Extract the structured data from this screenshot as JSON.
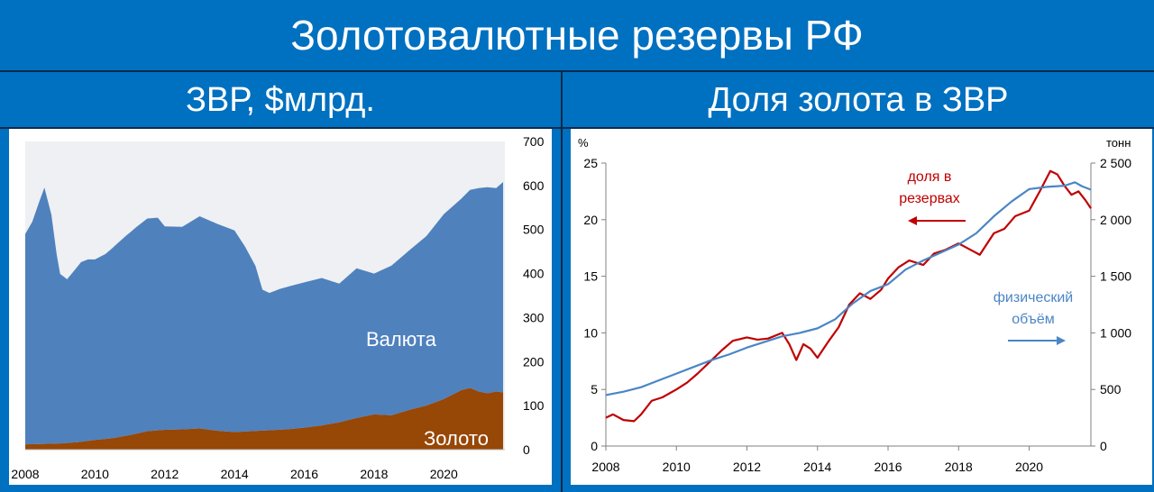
{
  "header": {
    "title": "Золотовалютные резервы РФ",
    "left_subtitle": "ЗВР, $млрд.",
    "right_subtitle": "Доля золота в ЗВР"
  },
  "colors": {
    "background": "#0070c0",
    "currency_area": "#4f81bd",
    "gold_area": "#974706",
    "share_line": "#c00000",
    "volume_line": "#4a86c5"
  },
  "chart_data": [
    {
      "type": "area",
      "stacked": true,
      "title": "ЗВР, $млрд.",
      "x_ticks": [
        "2008",
        "2010",
        "2012",
        "2014",
        "2016",
        "2018",
        "2020"
      ],
      "y_ticks": [
        "0",
        "100",
        "200",
        "300",
        "400",
        "500",
        "600",
        "700"
      ],
      "xlim": [
        2008,
        2021.75
      ],
      "ylim": [
        0,
        700
      ],
      "y_axis_side": "right",
      "grid": false,
      "series": [
        {
          "name": "Золото",
          "x": [
            2008.0,
            2008.5,
            2009.0,
            2009.5,
            2010.0,
            2010.5,
            2011.0,
            2011.5,
            2012.0,
            2012.5,
            2013.0,
            2013.5,
            2014.0,
            2014.5,
            2015.0,
            2015.5,
            2016.0,
            2016.5,
            2017.0,
            2017.5,
            2018.0,
            2018.5,
            2019.0,
            2019.5,
            2020.0,
            2020.5,
            2020.75,
            2021.0,
            2021.25,
            2021.5,
            2021.7
          ],
          "values": [
            12,
            13,
            14,
            17,
            22,
            26,
            33,
            42,
            45,
            46,
            48,
            43,
            40,
            42,
            44,
            46,
            50,
            55,
            62,
            72,
            80,
            78,
            90,
            100,
            115,
            135,
            140,
            132,
            128,
            132,
            130
          ]
        },
        {
          "name": "Валюта",
          "x": [
            2008.0,
            2008.2,
            2008.4,
            2008.55,
            2008.75,
            2008.9,
            2009.0,
            2009.2,
            2009.4,
            2009.6,
            2009.8,
            2010.0,
            2010.3,
            2010.6,
            2010.9,
            2011.2,
            2011.5,
            2011.8,
            2012.0,
            2012.5,
            2013.0,
            2013.5,
            2014.0,
            2014.3,
            2014.6,
            2014.8,
            2015.0,
            2015.3,
            2015.6,
            2016.0,
            2016.5,
            2017.0,
            2017.5,
            2018.0,
            2018.5,
            2019.0,
            2019.5,
            2020.0,
            2020.5,
            2020.75,
            2021.0,
            2021.25,
            2021.5,
            2021.7
          ],
          "values": [
            478,
            505,
            550,
            582,
            520,
            430,
            385,
            372,
            390,
            408,
            412,
            410,
            420,
            438,
            455,
            470,
            483,
            483,
            462,
            460,
            482,
            470,
            458,
            420,
            375,
            320,
            312,
            320,
            325,
            330,
            335,
            315,
            340,
            320,
            340,
            362,
            385,
            420,
            435,
            450,
            462,
            468,
            462,
            478
          ]
        }
      ],
      "labels": [
        "Валюта",
        "Золото"
      ]
    },
    {
      "type": "line",
      "title": "Доля золота в ЗВР",
      "x_ticks": [
        "2008",
        "2010",
        "2012",
        "2014",
        "2016",
        "2018",
        "2020"
      ],
      "xlim": [
        2008,
        2021.75
      ],
      "y_left": {
        "unit": "%",
        "ticks": [
          "0",
          "5",
          "10",
          "15",
          "20",
          "25"
        ],
        "range": [
          0,
          25
        ]
      },
      "y_right": {
        "unit": "тонн",
        "ticks": [
          "0",
          "500",
          "1 000",
          "1 500",
          "2 000",
          "2 500"
        ],
        "range": [
          0,
          2500
        ]
      },
      "grid": false,
      "series": [
        {
          "name": "доля в резервах",
          "axis": "left",
          "x": [
            2008.0,
            2008.2,
            2008.5,
            2008.8,
            2009.0,
            2009.3,
            2009.6,
            2010.0,
            2010.3,
            2010.6,
            2011.0,
            2011.3,
            2011.6,
            2012.0,
            2012.3,
            2012.6,
            2013.0,
            2013.2,
            2013.4,
            2013.6,
            2013.8,
            2014.0,
            2014.3,
            2014.6,
            2014.9,
            2015.2,
            2015.5,
            2015.8,
            2016.0,
            2016.3,
            2016.6,
            2017.0,
            2017.3,
            2017.6,
            2018.0,
            2018.3,
            2018.6,
            2019.0,
            2019.3,
            2019.6,
            2020.0,
            2020.3,
            2020.6,
            2020.8,
            2021.0,
            2021.2,
            2021.4,
            2021.6,
            2021.75
          ],
          "values": [
            2.5,
            2.8,
            2.3,
            2.2,
            2.8,
            4.0,
            4.3,
            5.0,
            5.6,
            6.4,
            7.6,
            8.5,
            9.3,
            9.6,
            9.4,
            9.5,
            10.0,
            9.0,
            7.6,
            9.0,
            8.6,
            7.8,
            9.2,
            10.5,
            12.5,
            13.5,
            13.0,
            13.8,
            14.8,
            15.8,
            16.4,
            16.0,
            17.0,
            17.3,
            17.9,
            17.4,
            16.9,
            18.8,
            19.2,
            20.3,
            20.8,
            22.5,
            24.3,
            24.0,
            23.0,
            22.2,
            22.5,
            21.7,
            21.0
          ]
        },
        {
          "name": "физический объём",
          "axis": "right",
          "x": [
            2008.0,
            2008.5,
            2009.0,
            2009.5,
            2010.0,
            2010.5,
            2011.0,
            2011.5,
            2012.0,
            2012.5,
            2013.0,
            2013.5,
            2014.0,
            2014.5,
            2015.0,
            2015.5,
            2016.0,
            2016.5,
            2017.0,
            2017.5,
            2018.0,
            2018.5,
            2019.0,
            2019.5,
            2020.0,
            2020.5,
            2021.0,
            2021.3,
            2021.5,
            2021.75
          ],
          "values": [
            450,
            480,
            520,
            580,
            640,
            700,
            760,
            810,
            870,
            920,
            970,
            1000,
            1040,
            1120,
            1260,
            1370,
            1430,
            1560,
            1640,
            1710,
            1780,
            1880,
            2030,
            2160,
            2270,
            2290,
            2300,
            2330,
            2295,
            2265
          ]
        }
      ],
      "annotations": [
        "доля в",
        "резервах",
        "физический",
        "объём"
      ]
    }
  ]
}
